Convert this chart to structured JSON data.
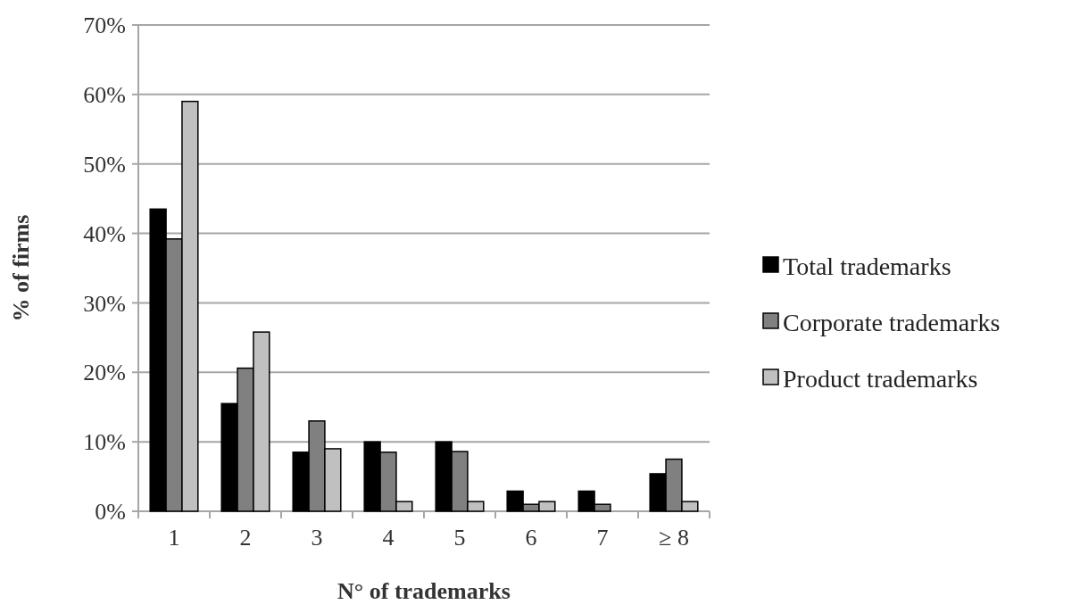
{
  "chart_data": {
    "type": "bar",
    "xlabel": "N° of trademarks",
    "ylabel": "% of firms",
    "categories": [
      "1",
      "2",
      "3",
      "4",
      "5",
      "6",
      "7",
      "≥ 8"
    ],
    "series": [
      {
        "name": "Total trademarks",
        "color": "#000000",
        "values": [
          43.5,
          15.5,
          8.5,
          10,
          10,
          2.9,
          2.9,
          5.4
        ]
      },
      {
        "name": "Corporate trademarks",
        "color": "#808080",
        "values": [
          39.2,
          20.6,
          13,
          8.5,
          8.6,
          1,
          1,
          7.5
        ]
      },
      {
        "name": "Product trademarks",
        "color": "#c0c0c0",
        "values": [
          59,
          25.8,
          9,
          1.4,
          1.4,
          1.4,
          null,
          1.4
        ]
      }
    ],
    "ylim": [
      0,
      70
    ],
    "yticks": [
      {
        "value": 0,
        "label": "0%"
      },
      {
        "value": 10,
        "label": "10%"
      },
      {
        "value": 20,
        "label": "20%"
      },
      {
        "value": 30,
        "label": "30%"
      },
      {
        "value": 40,
        "label": "40%"
      },
      {
        "value": 50,
        "label": "50%"
      },
      {
        "value": 60,
        "label": "60%"
      },
      {
        "value": 70,
        "label": "70%"
      }
    ],
    "grid": "y",
    "legend": "right"
  }
}
